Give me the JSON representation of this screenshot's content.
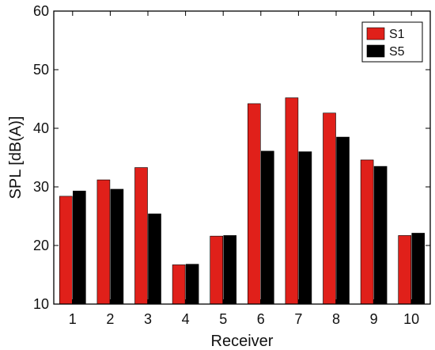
{
  "chart_data": {
    "type": "bar",
    "xlabel": "Receiver",
    "ylabel": "SPL [dB(A)]",
    "ylim": [
      10,
      60
    ],
    "yticks": [
      10,
      20,
      30,
      40,
      50,
      60
    ],
    "categories": [
      "1",
      "2",
      "3",
      "4",
      "5",
      "6",
      "7",
      "8",
      "9",
      "10"
    ],
    "series": [
      {
        "name": "S1",
        "color": "#e0201a",
        "values": [
          28.4,
          31.2,
          33.3,
          16.7,
          21.6,
          44.2,
          45.2,
          42.6,
          34.6,
          21.7
        ]
      },
      {
        "name": "S5",
        "color": "#000000",
        "values": [
          29.3,
          29.6,
          25.4,
          16.8,
          21.7,
          36.1,
          36.0,
          38.5,
          33.5,
          22.1
        ]
      }
    ],
    "legend_position": "top-right",
    "grid": false
  }
}
